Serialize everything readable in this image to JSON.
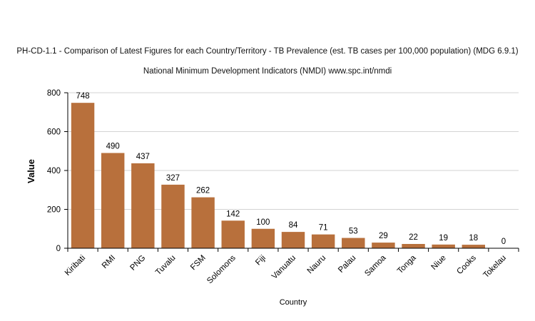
{
  "chart_data": {
    "type": "bar",
    "title": "PH-CD-1.1 - Comparison of Latest Figures for each Country/Territory - TB Prevalence (est. TB cases per 100,000 population) (MDG 6.9.1)",
    "subtitle": "National Minimum Development Indicators (NMDI) www.spc.int/nmdi",
    "xlabel": "Country",
    "ylabel": "Value",
    "categories": [
      "Kiribati",
      "RMI",
      "PNG",
      "Tuvalu",
      "FSM",
      "Solomons",
      "Fiji",
      "Vanuatu",
      "Nauru",
      "Palau",
      "Samoa",
      "Tonga",
      "Niue",
      "Cooks",
      "Tokelau"
    ],
    "values": [
      748,
      490,
      437,
      327,
      262,
      142,
      100,
      84,
      71,
      53,
      29,
      22,
      19,
      18,
      0
    ],
    "ylim": [
      0,
      800
    ],
    "yticks": [
      0,
      200,
      400,
      600,
      800
    ],
    "grid": true,
    "legend": "none",
    "bar_color": "#b8703c"
  }
}
